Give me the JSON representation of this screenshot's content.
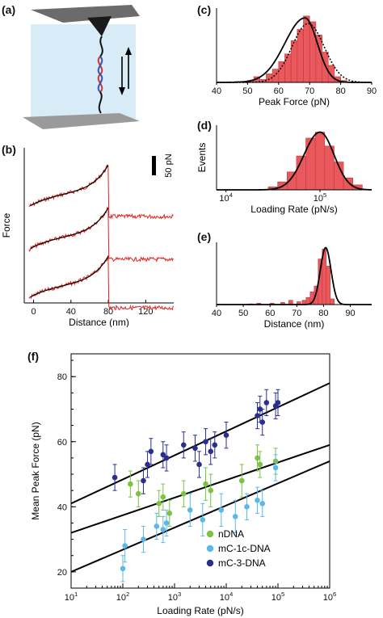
{
  "panel_labels": {
    "a": "(a)",
    "b": "(b)",
    "c": "(c)",
    "d": "(d)",
    "e": "(e)",
    "f": "(f)"
  },
  "colors": {
    "histogram_fill": "#e8585c",
    "histogram_edge": "#c0393d",
    "trace_red": "#e0241f",
    "fit_black": "#000000",
    "nDNA": "#7cc243",
    "mC-1c-DNA": "#5ab9e8",
    "mC-3-DNA": "#2a2f8c",
    "afm_cantilever": "#6b6b6b",
    "surface": "#9a9a9a",
    "solution_bg": "#d8ecf8"
  },
  "chart_data": [
    {
      "id": "b",
      "type": "line",
      "xlabel": "Distance (nm)",
      "ylabel": "Force",
      "x_ticks": [
        "0",
        "40",
        "80",
        "120"
      ],
      "xlim": [
        -10,
        150
      ],
      "scale_bar_label": "50 pN",
      "series": [
        {
          "offset_pN": 0,
          "rupture_nm": 80
        },
        {
          "offset_pN": 0,
          "rupture_nm": 80
        },
        {
          "offset_pN": 0,
          "rupture_nm": 80
        }
      ]
    },
    {
      "id": "c",
      "type": "bar",
      "xlabel": "Peak Force (pN)",
      "x_ticks": [
        "40",
        "50",
        "60",
        "70",
        "80",
        "90"
      ],
      "xlim": [
        40,
        90
      ],
      "bin_width": 2,
      "bins_start": [
        46,
        48,
        50,
        52,
        54,
        56,
        58,
        60,
        62,
        64,
        66,
        68,
        70,
        72,
        74,
        76,
        78,
        80
      ],
      "counts": [
        1,
        1,
        2,
        6,
        3,
        9,
        14,
        22,
        30,
        44,
        56,
        70,
        64,
        50,
        32,
        18,
        6,
        2
      ],
      "fit_solid": {
        "center": 68.5,
        "peak": 60,
        "note": "asymmetric"
      },
      "fit_dotted": {
        "center": 69.5,
        "peak": 58
      }
    },
    {
      "id": "d",
      "type": "bar",
      "xlabel": "Loading Rate (pN/s)",
      "ylabel": "Events",
      "x_ticks": [
        "10^4",
        "10^5"
      ],
      "x_scale": "log",
      "bins_log10": [
        4.45,
        4.55,
        4.65,
        4.75,
        4.85,
        4.95,
        5.05,
        5.15,
        5.25,
        5.35
      ],
      "counts": [
        3,
        8,
        18,
        34,
        52,
        58,
        44,
        28,
        12,
        5
      ],
      "fit_center_log10": 4.95
    },
    {
      "id": "e",
      "type": "bar",
      "xlabel": "Distance (nm)",
      "x_ticks": [
        "40",
        "50",
        "60",
        "70",
        "80",
        "90"
      ],
      "xlim": [
        40,
        98
      ],
      "bin_width": 1.5,
      "bins_start": [
        52,
        55,
        60,
        64,
        67,
        70,
        72,
        73.5,
        75,
        76.5,
        78,
        79.5,
        81,
        82.5
      ],
      "counts": [
        1,
        2,
        2,
        3,
        6,
        4,
        6,
        10,
        18,
        26,
        64,
        78,
        54,
        8
      ],
      "fit_center": 80.5
    },
    {
      "id": "f",
      "type": "scatter",
      "xlabel": "Loading Rate (pN/s)",
      "ylabel": "Mean Peak Force (pN)",
      "x_scale": "log",
      "x_ticks": [
        "10^1",
        "10^2",
        "10^3",
        "10^4",
        "10^5",
        "10^6"
      ],
      "y_ticks": [
        "20",
        "40",
        "60",
        "80"
      ],
      "xlim": [
        10,
        1000000
      ],
      "ylim": [
        15,
        87
      ],
      "legend_position": "bottom-right",
      "series": [
        {
          "name": "nDNA",
          "points": [
            [
              140,
              47,
              4
            ],
            [
              200,
              44,
              4
            ],
            [
              500,
              41,
              4
            ],
            [
              600,
              43,
              4
            ],
            [
              800,
              38,
              4
            ],
            [
              1500,
              44,
              4
            ],
            [
              4000,
              47,
              5
            ],
            [
              5000,
              45,
              5
            ],
            [
              20000,
              48,
              5
            ],
            [
              40000,
              55,
              4
            ],
            [
              45000,
              53,
              4
            ],
            [
              90000,
              54,
              4
            ]
          ]
        },
        {
          "name": "mC-1c-DNA",
          "points": [
            [
              100,
              21,
              4
            ],
            [
              110,
              28,
              5
            ],
            [
              250,
              30,
              4
            ],
            [
              450,
              34,
              4
            ],
            [
              600,
              33,
              4
            ],
            [
              700,
              35,
              4
            ],
            [
              2000,
              39,
              5
            ],
            [
              3500,
              36,
              5
            ],
            [
              8000,
              39,
              5
            ],
            [
              15000,
              37,
              5
            ],
            [
              25000,
              40,
              4
            ],
            [
              40000,
              42,
              4
            ],
            [
              50000,
              41,
              4
            ],
            [
              90000,
              52,
              4
            ]
          ]
        },
        {
          "name": "mC-3-DNA",
          "points": [
            [
              70,
              49,
              4
            ],
            [
              250,
              48,
              4
            ],
            [
              300,
              53,
              4
            ],
            [
              350,
              57,
              4
            ],
            [
              600,
              56,
              4
            ],
            [
              700,
              55,
              4
            ],
            [
              1500,
              59,
              4
            ],
            [
              2500,
              58,
              4
            ],
            [
              3000,
              53,
              4
            ],
            [
              4000,
              60,
              4
            ],
            [
              5000,
              57,
              4
            ],
            [
              6000,
              59,
              4
            ],
            [
              10000,
              62,
              4
            ],
            [
              40000,
              68,
              4
            ],
            [
              45000,
              70,
              4
            ],
            [
              50000,
              66,
              4
            ],
            [
              60000,
              72,
              4
            ],
            [
              90000,
              71,
              4
            ],
            [
              100000,
              72,
              4
            ]
          ]
        }
      ],
      "fit_lines": [
        {
          "y_at_1e1": 41,
          "y_at_1e6": 78
        },
        {
          "y_at_1e1": 32,
          "y_at_1e6": 59
        },
        {
          "y_at_1e1": 20,
          "y_at_1e6": 54
        }
      ]
    }
  ]
}
